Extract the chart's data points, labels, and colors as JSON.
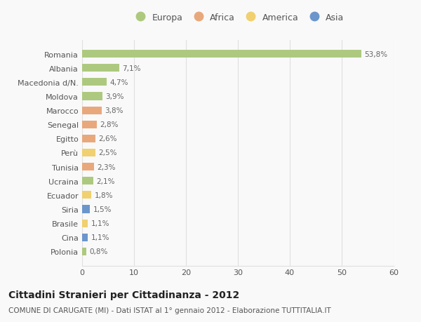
{
  "countries": [
    "Romania",
    "Albania",
    "Macedonia d/N.",
    "Moldova",
    "Marocco",
    "Senegal",
    "Egitto",
    "Perù",
    "Tunisia",
    "Ucraina",
    "Ecuador",
    "Siria",
    "Brasile",
    "Cina",
    "Polonia"
  ],
  "values": [
    53.8,
    7.1,
    4.7,
    3.9,
    3.8,
    2.8,
    2.6,
    2.5,
    2.3,
    2.1,
    1.8,
    1.5,
    1.1,
    1.1,
    0.8
  ],
  "labels": [
    "53,8%",
    "7,1%",
    "4,7%",
    "3,9%",
    "3,8%",
    "2,8%",
    "2,6%",
    "2,5%",
    "2,3%",
    "2,1%",
    "1,8%",
    "1,5%",
    "1,1%",
    "1,1%",
    "0,8%"
  ],
  "categories": [
    "Europa",
    "Europa",
    "Europa",
    "Europa",
    "Africa",
    "Africa",
    "Africa",
    "America",
    "Africa",
    "Europa",
    "America",
    "Asia",
    "America",
    "Asia",
    "Europa"
  ],
  "colors": {
    "Europa": "#adc97f",
    "Africa": "#e8a87c",
    "America": "#f0d070",
    "Asia": "#6b96cc"
  },
  "legend_order": [
    "Europa",
    "Africa",
    "America",
    "Asia"
  ],
  "title": "Cittadini Stranieri per Cittadinanza - 2012",
  "subtitle": "COMUNE DI CARUGATE (MI) - Dati ISTAT al 1° gennaio 2012 - Elaborazione TUTTITALIA.IT",
  "xlim": [
    0,
    60
  ],
  "xticks": [
    0,
    10,
    20,
    30,
    40,
    50,
    60
  ],
  "background_color": "#f9f9f9",
  "grid_color": "#e0e0e0",
  "bar_height": 0.55,
  "label_color": "#666666",
  "text_color": "#555555"
}
